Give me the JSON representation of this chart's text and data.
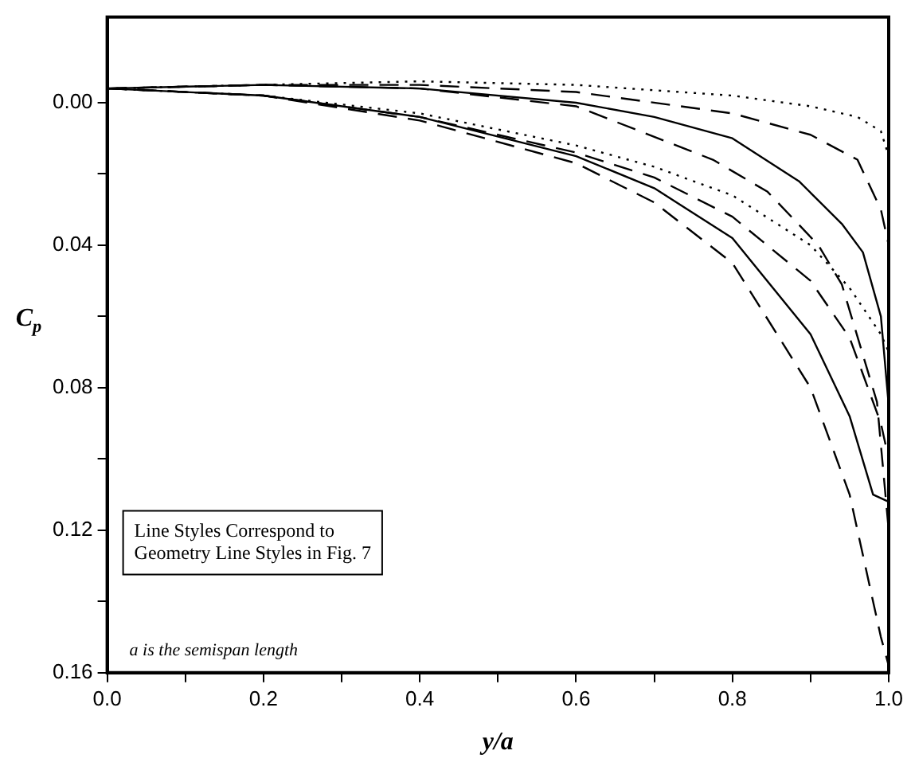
{
  "chart_data": {
    "type": "line",
    "xlabel": "y/a",
    "ylabel": "C$_{p}$",
    "xlim": [
      0,
      1
    ],
    "ylim": [
      0.16,
      -0.024
    ],
    "xticks": [
      {
        "value": 0,
        "label": "0.0"
      },
      {
        "value": 0.1,
        "label": null
      },
      {
        "value": 0.2,
        "label": "0.2"
      },
      {
        "value": 0.3,
        "label": null
      },
      {
        "value": 0.4,
        "label": "0.4"
      },
      {
        "value": 0.5,
        "label": null
      },
      {
        "value": 0.6,
        "label": "0.6"
      },
      {
        "value": 0.7,
        "label": null
      },
      {
        "value": 0.8,
        "label": "0.8"
      },
      {
        "value": 0.9,
        "label": null
      },
      {
        "value": 1,
        "label": "1.0"
      }
    ],
    "yticks": [
      {
        "value": 0,
        "label": "0.00"
      },
      {
        "value": 0.02,
        "label": null
      },
      {
        "value": 0.04,
        "label": "0.04"
      },
      {
        "value": 0.06,
        "label": null
      },
      {
        "value": 0.08,
        "label": "0.08"
      },
      {
        "value": 0.1,
        "label": null
      },
      {
        "value": 0.12,
        "label": "0.12"
      },
      {
        "value": 0.14,
        "label": null
      },
      {
        "value": 0.16,
        "label": "0.16"
      }
    ],
    "grid": false,
    "legend": false,
    "marker": "none",
    "series": [
      {
        "color": "#000000",
        "line_style": "dotted",
        "x": [
          0,
          0.2,
          0.4,
          0.6,
          0.8,
          0.9,
          0.96,
          0.99,
          1.0
        ],
        "values": [
          -0.004,
          -0.005,
          -0.006,
          -0.005,
          -0.002,
          0.001,
          0.004,
          0.008,
          0.015
        ]
      },
      {
        "color": "#000000",
        "line_style": "dashed",
        "x": [
          0,
          0.2,
          0.4,
          0.6,
          0.8,
          0.9,
          0.96,
          0.99,
          1.0
        ],
        "values": [
          -0.004,
          -0.005,
          -0.005,
          -0.003,
          0.003,
          0.009,
          0.016,
          0.03,
          0.04
        ]
      },
      {
        "color": "#000000",
        "line_style": "solid",
        "x": [
          0,
          0.2,
          0.4,
          0.6,
          0.7,
          0.8,
          0.885,
          0.94,
          0.967,
          0.99,
          1.0
        ],
        "values": [
          -0.004,
          -0.005,
          -0.004,
          0.0,
          0.004,
          0.01,
          0.022,
          0.034,
          0.042,
          0.06,
          0.085
        ]
      },
      {
        "color": "#000000",
        "line_style": "dashed",
        "x": [
          0,
          0.2,
          0.4,
          0.6,
          0.775,
          0.845,
          0.91,
          0.94,
          0.985,
          1.0
        ],
        "values": [
          -0.004,
          -0.005,
          -0.004,
          0.001,
          0.016,
          0.025,
          0.04,
          0.051,
          0.084,
          0.12
        ]
      },
      {
        "color": "#000000",
        "line_style": "dotted",
        "x": [
          0,
          0.2,
          0.4,
          0.6,
          0.7,
          0.8,
          0.9,
          0.95,
          0.99,
          1.0
        ],
        "values": [
          -0.004,
          -0.002,
          0.003,
          0.012,
          0.018,
          0.026,
          0.04,
          0.052,
          0.065,
          0.07
        ]
      },
      {
        "color": "#000000",
        "line_style": "dashed",
        "x": [
          0,
          0.2,
          0.4,
          0.6,
          0.7,
          0.8,
          0.9,
          0.95,
          0.99,
          1.0
        ],
        "values": [
          -0.004,
          -0.002,
          0.004,
          0.014,
          0.021,
          0.032,
          0.05,
          0.066,
          0.09,
          0.1
        ]
      },
      {
        "color": "#000000",
        "line_style": "solid",
        "x": [
          0,
          0.2,
          0.4,
          0.6,
          0.7,
          0.8,
          0.9,
          0.95,
          0.98,
          1.0
        ],
        "values": [
          -0.004,
          -0.002,
          0.004,
          0.015,
          0.024,
          0.038,
          0.065,
          0.088,
          0.11,
          0.112
        ]
      },
      {
        "color": "#000000",
        "line_style": "dashed",
        "x": [
          0,
          0.2,
          0.4,
          0.6,
          0.7,
          0.8,
          0.9,
          0.95,
          0.99,
          1.0
        ],
        "values": [
          -0.004,
          -0.002,
          0.005,
          0.017,
          0.028,
          0.045,
          0.08,
          0.11,
          0.15,
          0.158
        ]
      }
    ],
    "annotations": [
      "Line Styles Correspond to Geometry Line Styles in Fig. 7",
      "a is the semispan length"
    ]
  }
}
